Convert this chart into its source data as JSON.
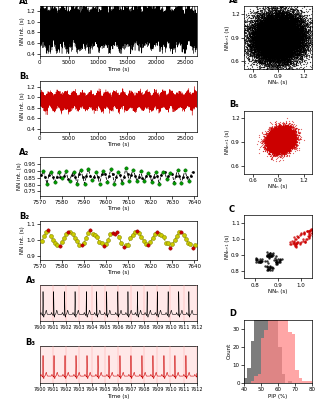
{
  "fig_width": 3.17,
  "fig_height": 4.01,
  "dpi": 100,
  "A1_ylim": [
    0.35,
    1.3
  ],
  "A1_xlim": [
    0,
    27000
  ],
  "A1_yticks": [
    0.4,
    0.6,
    0.8,
    1.0,
    1.2
  ],
  "A1_xticks": [
    0,
    5000,
    10000,
    15000,
    20000,
    25000
  ],
  "B1_ylim": [
    0.35,
    1.3
  ],
  "B1_xlim": [
    0,
    27000
  ],
  "B1_yticks": [
    0.4,
    0.6,
    0.8,
    1.0,
    1.2
  ],
  "B1_xticks": [
    0,
    5000,
    10000,
    15000,
    20000,
    25000
  ],
  "A2_ylim": [
    0.72,
    1.0
  ],
  "A2_xlim": [
    7570,
    7641
  ],
  "B2_ylim": [
    0.88,
    1.12
  ],
  "B2_xlim": [
    7570,
    7641
  ],
  "As_xlim": [
    0.5,
    1.3
  ],
  "As_ylim": [
    0.5,
    1.3
  ],
  "As_xticks": [
    0.6,
    0.9,
    1.2
  ],
  "As_yticks": [
    0.6,
    0.9,
    1.2
  ],
  "Bs_xlim": [
    0.5,
    1.3
  ],
  "Bs_ylim": [
    0.5,
    1.3
  ],
  "Bs_xticks": [
    0.6,
    0.9,
    1.2
  ],
  "Bs_yticks": [
    0.6,
    0.9,
    1.2
  ],
  "C_xlim": [
    0.75,
    1.05
  ],
  "C_ylim": [
    0.75,
    1.15
  ],
  "C_xticks": [
    0.8,
    0.9,
    1.0
  ],
  "C_yticks": [
    0.8,
    0.9,
    1.0,
    1.1
  ],
  "D_xlim": [
    40,
    80
  ],
  "D_ylim": [
    0,
    35
  ],
  "D_xticks": [
    40,
    50,
    60,
    70,
    80
  ],
  "D_yticks": [
    0,
    10,
    20,
    30
  ],
  "ECG_xlim": [
    7600,
    7612
  ],
  "ECG_xticks": [
    7600,
    7601,
    7602,
    7603,
    7604,
    7605,
    7606,
    7607,
    7608,
    7609,
    7610,
    7611,
    7612
  ],
  "color_black": "#000000",
  "color_red": "#CC0000",
  "color_green": "#009900",
  "color_olive": "#999900",
  "color_hist_dark": "#666666",
  "color_hist_red": "#FF8888",
  "ecg_bg": "#FFE8E8",
  "ecg_grid": "#FFAAAA"
}
